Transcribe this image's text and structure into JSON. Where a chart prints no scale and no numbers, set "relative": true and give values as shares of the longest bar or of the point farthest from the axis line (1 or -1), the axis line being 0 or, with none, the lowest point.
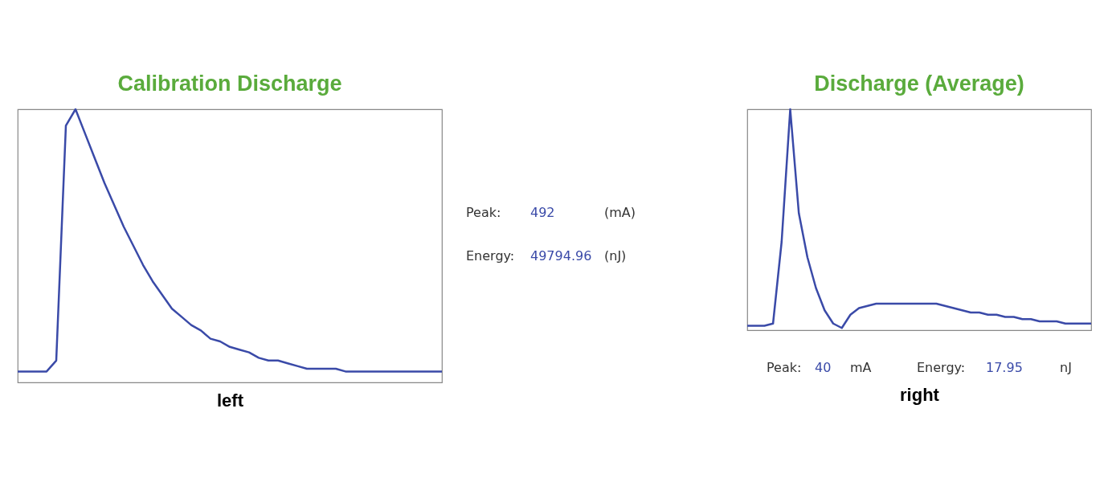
{
  "chart_data": [
    {
      "type": "line",
      "title": "Calibration Discharge",
      "xlabel": "left",
      "relative": true,
      "categories": [
        null,
        null,
        null,
        null,
        null,
        null,
        null,
        null,
        null,
        null,
        null,
        null,
        null,
        null,
        null,
        null,
        null,
        null,
        null,
        null,
        null,
        null,
        null,
        null,
        null,
        null,
        null,
        null,
        null,
        null,
        null,
        null,
        null,
        null,
        null,
        null,
        null,
        null,
        null,
        null,
        null,
        null,
        null,
        null,
        null
      ],
      "series": [
        {
          "color": "#3a4aa8",
          "values": [
            0.04,
            0.04,
            0.04,
            0.04,
            0.08,
            0.94,
            1,
            0.91,
            0.82,
            0.73,
            0.65,
            0.57,
            0.5,
            0.43,
            0.37,
            0.32,
            0.27,
            0.24,
            0.21,
            0.19,
            0.16,
            0.15,
            0.13,
            0.12,
            0.11,
            0.09,
            0.08,
            0.08,
            0.07,
            0.06,
            0.05,
            0.05,
            0.05,
            0.05,
            0.04,
            0.04,
            0.04,
            0.04,
            0.04,
            0.04,
            0.04,
            0.04,
            0.04,
            0.04,
            0.04
          ]
        }
      ]
    },
    {
      "type": "other",
      "annotations": [
        "Peak:",
        "492",
        "(mA)",
        "Energy:",
        "49794.96",
        "(nJ)"
      ]
    },
    {
      "type": "line",
      "title": "Discharge (Average)",
      "xlabel": "right",
      "relative": true,
      "annotations": [
        "Peak:",
        "40",
        "mA",
        "Energy:",
        "17.95",
        "nJ"
      ],
      "categories": [
        null,
        null,
        null,
        null,
        null,
        null,
        null,
        null,
        null,
        null,
        null,
        null,
        null,
        null,
        null,
        null,
        null,
        null,
        null,
        null,
        null,
        null,
        null,
        null,
        null,
        null,
        null,
        null,
        null,
        null,
        null,
        null,
        null,
        null,
        null,
        null,
        null,
        null,
        null,
        null,
        null
      ],
      "series": [
        {
          "color": "#3a4aa8",
          "values": [
            0.02,
            0.02,
            0.02,
            0.03,
            0.4,
            1,
            0.53,
            0.33,
            0.19,
            0.09,
            0.03,
            0.01,
            0.07,
            0.1,
            0.11,
            0.12,
            0.12,
            0.12,
            0.12,
            0.12,
            0.12,
            0.12,
            0.12,
            0.11,
            0.1,
            0.09,
            0.08,
            0.08,
            0.07,
            0.07,
            0.06,
            0.06,
            0.05,
            0.05,
            0.04,
            0.04,
            0.04,
            0.03,
            0.03,
            0.03,
            0.03
          ]
        }
      ]
    }
  ]
}
